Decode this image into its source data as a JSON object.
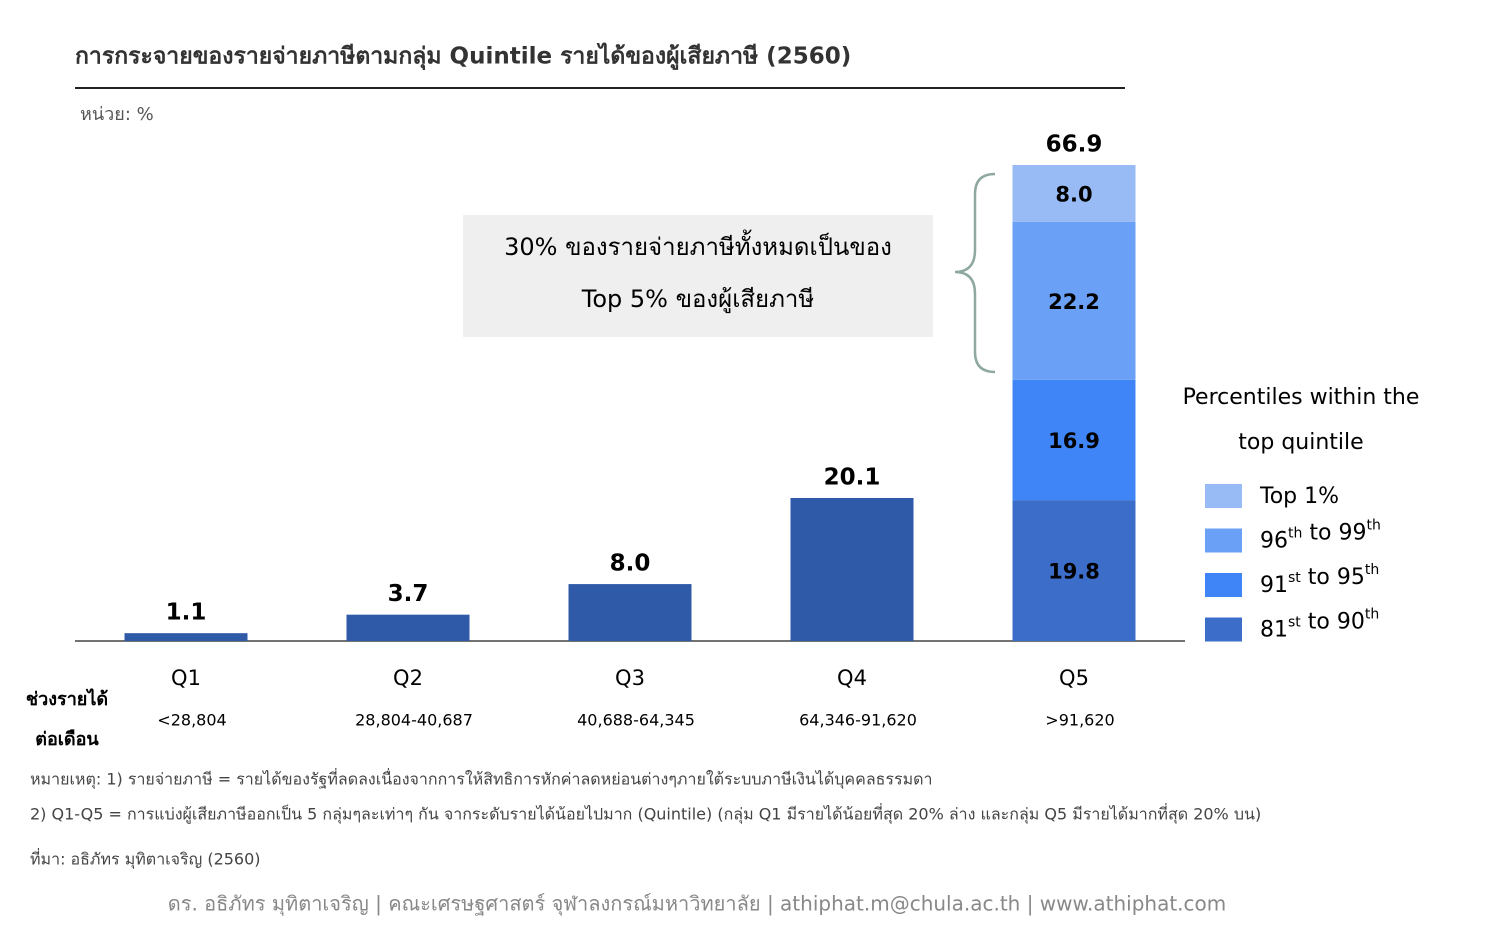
{
  "chart_data": {
    "type": "bar",
    "title": "การกระจายของรายจ่ายภาษีตามกลุ่ม Quintile รายได้ของผู้เสียภาษี (2560)",
    "unit_label": "หน่วย: %",
    "categories": [
      "Q1",
      "Q2",
      "Q3",
      "Q4",
      "Q5"
    ],
    "sub_labels": [
      "<28,804",
      "28,804-40,687",
      "40,688-64,345",
      "64,346-91,620",
      ">91,620"
    ],
    "row_label": [
      "ช่วงรายได้",
      "ต่อเดือน"
    ],
    "values": [
      1.1,
      3.7,
      8.0,
      20.1,
      66.9
    ],
    "value_labels": [
      "1.1",
      "3.7",
      "8.0",
      "20.1",
      "66.9"
    ],
    "color": "#2f5aa8",
    "series": [
      {
        "name": "81st to 90th",
        "color": "#3c6dc9",
        "values": [
          null,
          null,
          null,
          null,
          19.8
        ],
        "value_labels": [
          null,
          null,
          null,
          null,
          "19.8"
        ]
      },
      {
        "name": "91st to 95th",
        "color": "#3f85f7",
        "values": [
          null,
          null,
          null,
          null,
          16.9
        ],
        "value_labels": [
          null,
          null,
          null,
          null,
          "16.9"
        ]
      },
      {
        "name": "96th to 99th",
        "color": "#6aa0f5",
        "values": [
          null,
          null,
          null,
          null,
          22.2
        ],
        "value_labels": [
          null,
          null,
          null,
          null,
          "22.2"
        ]
      },
      {
        "name": "Top 1%",
        "color": "#98bbf5",
        "values": [
          null,
          null,
          null,
          null,
          8.0
        ],
        "value_labels": [
          null,
          null,
          null,
          null,
          "8.0"
        ]
      }
    ],
    "legend_title": [
      "Percentiles within the",
      "top quintile"
    ],
    "annotation": [
      "30% ของรายจ่ายภาษีทั้งหมดเป็นของ",
      "Top 5% ของผู้เสียภาษี"
    ],
    "notes": [
      "หมายเหตุ: 1) รายจ่ายภาษี = รายได้ของรัฐที่ลดลงเนื่องจากการให้สิทธิการหักค่าลดหย่อนต่างๆภายใต้ระบบภาษีเงินได้บุคคลธรรมดา",
      "2) Q1-Q5 = การแบ่งผู้เสียภาษีออกเป็น 5 กลุ่มๆละเท่าๆ กัน จากระดับรายได้น้อยไปมาก (Quintile) (กลุ่ม Q1 มีรายได้น้อยที่สุด 20% ล่าง และกลุ่ม Q5 มีรายได้มากที่สุด 20% บน)",
      "ที่มา: อธิภัทร มุทิตาเจริญ (2560)"
    ],
    "footer": "ดร. อธิภัทร มุทิตาเจริญ | คณะเศรษฐศาสตร์ จุฬาลงกรณ์มหาวิทยาลัย | athiphat.m@chula.ac.th | www.athiphat.com"
  }
}
